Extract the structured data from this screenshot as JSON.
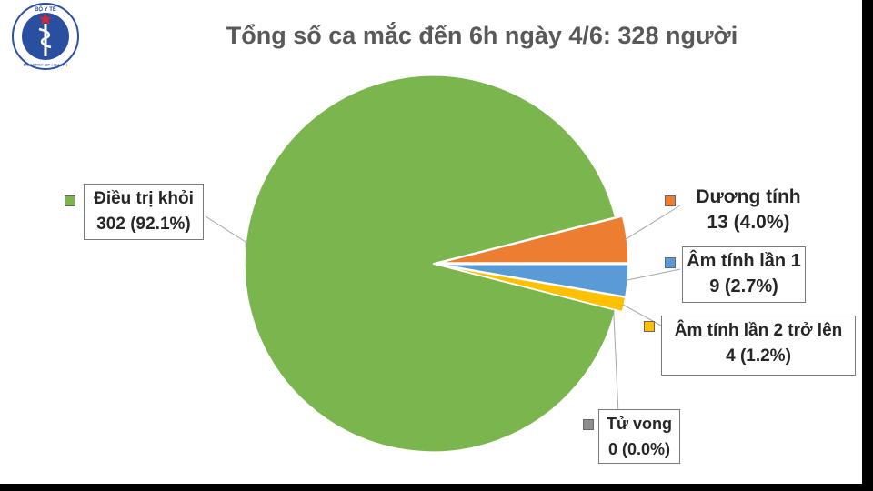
{
  "header": {
    "logo_text_top": "BỘ Y TẾ",
    "logo_text_bottom": "MINISTRY OF HEALTH"
  },
  "colors": {
    "green": "#7ab54e",
    "orange": "#ed7d31",
    "blue": "#5b9bd5",
    "yellow": "#ffc000",
    "gray": "#8c8c8c",
    "logo_blue": "#2b4fa0",
    "logo_red": "#d9272e"
  },
  "chart_data": {
    "type": "pie",
    "title": "Tổng số ca mắc đến 6h ngày 4/6: 328 người",
    "slices": [
      {
        "name": "Điều trị khỏi",
        "value": 302,
        "label": "302 (92.1%)",
        "color": "#7ab54e",
        "explode": 0
      },
      {
        "name": "Dương tính",
        "value": 13,
        "label": "13 (4.0%)",
        "color": "#ed7d31",
        "explode": 1
      },
      {
        "name": "Âm tính lần 1",
        "value": 9,
        "label": "9 (2.7%)",
        "color": "#5b9bd5",
        "explode": 1
      },
      {
        "name": "Âm tính lần 2 trở lên",
        "value": 4,
        "label": "4 (1.2%)",
        "color": "#ffc000",
        "explode": 1
      },
      {
        "name": "Tử vong",
        "value": 0,
        "label": "0 (0.0%)",
        "color": "#8c8c8c",
        "explode": 0
      }
    ],
    "legend": "callouts"
  }
}
